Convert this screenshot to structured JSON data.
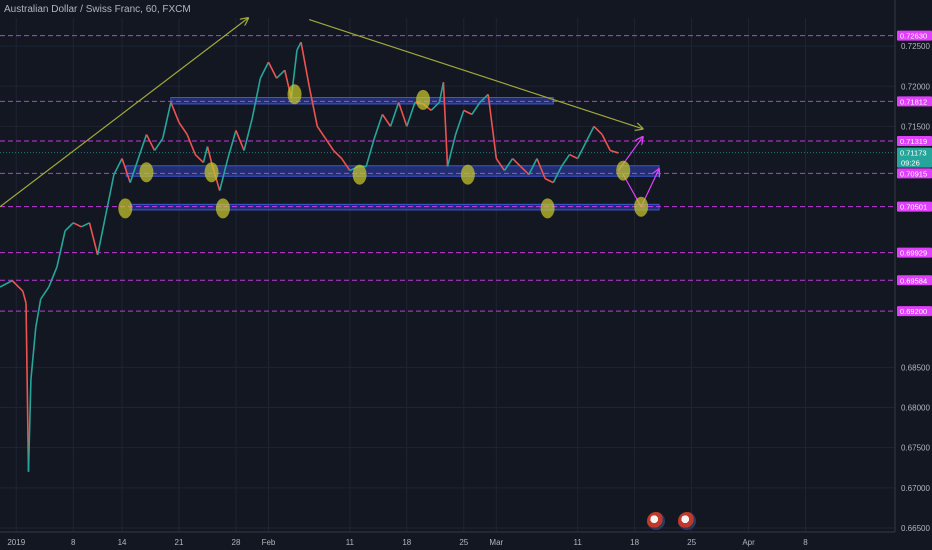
{
  "header": {
    "title": "Australian Dollar / Swiss Franc, 60, FXCM"
  },
  "colors": {
    "bg": "#131722",
    "up": "#26a69a",
    "down": "#ef5350",
    "hline": "#e040fb",
    "zone": "#2b3fa8",
    "trend": "#9fa83a",
    "mark": "#c7c72a",
    "current": "#26a69a"
  },
  "chart_data": {
    "type": "line",
    "title": "Australian Dollar / Swiss Franc, 60, FXCM",
    "ylim": [
      0.6645,
      0.7285
    ],
    "y_ticks": [
      "0.72500",
      "0.72000",
      "0.71500",
      "0.68500",
      "0.68000",
      "0.67500",
      "0.67000",
      "0.66500"
    ],
    "x_ticks": [
      {
        "label": "2019",
        "day": 0
      },
      {
        "label": "8",
        "day": 7
      },
      {
        "label": "14",
        "day": 13
      },
      {
        "label": "21",
        "day": 20
      },
      {
        "label": "28",
        "day": 27
      },
      {
        "label": "Feb",
        "day": 31
      },
      {
        "label": "11",
        "day": 41
      },
      {
        "label": "18",
        "day": 48
      },
      {
        "label": "25",
        "day": 55
      },
      {
        "label": "Mar",
        "day": 59
      },
      {
        "label": "11",
        "day": 69
      },
      {
        "label": "18",
        "day": 76
      },
      {
        "label": "25",
        "day": 83
      },
      {
        "label": "Apr",
        "day": 90
      },
      {
        "label": "8",
        "day": 97
      }
    ],
    "x_day_range": [
      -2,
      108
    ],
    "price_path": [
      [
        -2,
        0.695
      ],
      [
        -0.5,
        0.6958
      ],
      [
        0.8,
        0.6945
      ],
      [
        1.2,
        0.693
      ],
      [
        1.5,
        0.672
      ],
      [
        1.8,
        0.6835
      ],
      [
        2.4,
        0.69
      ],
      [
        3,
        0.6935
      ],
      [
        4,
        0.695
      ],
      [
        5,
        0.6975
      ],
      [
        6,
        0.702
      ],
      [
        7,
        0.703
      ],
      [
        8,
        0.7025
      ],
      [
        9,
        0.703
      ],
      [
        10,
        0.699
      ],
      [
        11,
        0.704
      ],
      [
        12,
        0.709
      ],
      [
        13,
        0.711
      ],
      [
        14,
        0.708
      ],
      [
        15,
        0.711
      ],
      [
        16,
        0.714
      ],
      [
        17,
        0.712
      ],
      [
        18,
        0.7135
      ],
      [
        19,
        0.718
      ],
      [
        20,
        0.7155
      ],
      [
        21,
        0.714
      ],
      [
        22,
        0.7115
      ],
      [
        23,
        0.7105
      ],
      [
        23.5,
        0.7125
      ],
      [
        24,
        0.7105
      ],
      [
        25,
        0.707
      ],
      [
        26,
        0.711
      ],
      [
        27,
        0.7145
      ],
      [
        28,
        0.712
      ],
      [
        29,
        0.716
      ],
      [
        30,
        0.721
      ],
      [
        31,
        0.723
      ],
      [
        32,
        0.721
      ],
      [
        33,
        0.722
      ],
      [
        33.8,
        0.7185
      ],
      [
        34.5,
        0.7245
      ],
      [
        35,
        0.7255
      ],
      [
        36,
        0.72
      ],
      [
        37,
        0.715
      ],
      [
        38,
        0.7135
      ],
      [
        39,
        0.712
      ],
      [
        40,
        0.711
      ],
      [
        41,
        0.7095
      ],
      [
        42,
        0.71
      ],
      [
        43,
        0.71
      ],
      [
        44,
        0.7135
      ],
      [
        45,
        0.7165
      ],
      [
        46,
        0.715
      ],
      [
        47,
        0.718
      ],
      [
        48,
        0.715
      ],
      [
        49,
        0.718
      ],
      [
        50,
        0.7178
      ],
      [
        51,
        0.717
      ],
      [
        52,
        0.718
      ],
      [
        52.5,
        0.7205
      ],
      [
        53,
        0.71
      ],
      [
        54,
        0.714
      ],
      [
        55,
        0.717
      ],
      [
        56,
        0.7165
      ],
      [
        57,
        0.718
      ],
      [
        58,
        0.719
      ],
      [
        58.5,
        0.715
      ],
      [
        59,
        0.711
      ],
      [
        60,
        0.7095
      ],
      [
        61,
        0.711
      ],
      [
        62,
        0.71
      ],
      [
        63,
        0.709
      ],
      [
        64,
        0.711
      ],
      [
        65,
        0.7085
      ],
      [
        66,
        0.708
      ],
      [
        67,
        0.71
      ],
      [
        68,
        0.7115
      ],
      [
        69,
        0.711
      ],
      [
        70,
        0.713
      ],
      [
        71,
        0.715
      ],
      [
        72,
        0.714
      ],
      [
        73,
        0.712
      ],
      [
        74,
        0.7117
      ]
    ],
    "hlines": [
      0.7263,
      0.71812,
      0.71319,
      0.70915,
      0.70501,
      0.69929,
      0.69584,
      0.692
    ],
    "price_tags": [
      "0.72630",
      "0.71812",
      "0.71319",
      "0.70915",
      "0.70501",
      "0.69929",
      "0.69584",
      "0.69200"
    ],
    "current": {
      "label": "0.71173",
      "countdown": "09:26",
      "value": 0.71173
    },
    "zones": [
      {
        "x0": 19,
        "x1": 66,
        "y0": 0.7178,
        "y1": 0.7186
      },
      {
        "x0": 13.5,
        "x1": 79,
        "y0": 0.7088,
        "y1": 0.7101
      },
      {
        "x0": 14,
        "x1": 79,
        "y0": 0.7046,
        "y1": 0.7053
      }
    ],
    "trendlines": [
      {
        "x0": -2,
        "y0": 0.705,
        "x1": 28.5,
        "y1": 0.7285,
        "arrow": true
      },
      {
        "x0": 36,
        "y0": 0.7283,
        "x1": 77,
        "y1": 0.7147,
        "arrow": true
      }
    ],
    "projection": [
      {
        "x0": 74,
        "y0": 0.7095,
        "x1": 77,
        "y1": 0.7137,
        "arrow": true
      },
      {
        "x0": 74.5,
        "y0": 0.7092,
        "x1": 76.8,
        "y1": 0.705,
        "arrow": false
      },
      {
        "x0": 76.8,
        "y0": 0.705,
        "x1": 79,
        "y1": 0.7097,
        "arrow": true
      }
    ],
    "highlights": [
      {
        "x": 13.4,
        "y": 0.7048
      },
      {
        "x": 16,
        "y": 0.7093
      },
      {
        "x": 24,
        "y": 0.7093
      },
      {
        "x": 25.4,
        "y": 0.7048
      },
      {
        "x": 34.2,
        "y": 0.719
      },
      {
        "x": 42.2,
        "y": 0.709
      },
      {
        "x": 50,
        "y": 0.7183
      },
      {
        "x": 55.5,
        "y": 0.709
      },
      {
        "x": 65.3,
        "y": 0.7048
      },
      {
        "x": 74.6,
        "y": 0.7095
      },
      {
        "x": 76.8,
        "y": 0.705
      }
    ],
    "grid": true
  }
}
